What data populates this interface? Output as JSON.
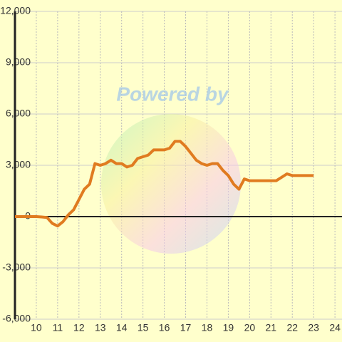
{
  "chart_data": {
    "type": "line",
    "watermark": "Powered by",
    "x": [
      9,
      9.5,
      10,
      10.25,
      10.5,
      10.75,
      11,
      11.25,
      11.5,
      11.75,
      12,
      12.25,
      12.5,
      12.75,
      13,
      13.25,
      13.5,
      13.75,
      14,
      14.25,
      14.5,
      14.75,
      15,
      15.25,
      15.5,
      15.75,
      16,
      16.25,
      16.5,
      16.75,
      17,
      17.25,
      17.5,
      17.75,
      18,
      18.25,
      18.5,
      18.75,
      19,
      19.25,
      19.5,
      19.75,
      20,
      20.25,
      20.5,
      20.75,
      21,
      21.25,
      21.5,
      21.75,
      22,
      22.25,
      22.5,
      22.75,
      23
    ],
    "series": [
      {
        "color": "#e07b20",
        "values": [
          0,
          0,
          0,
          -20,
          -50,
          -400,
          -550,
          -300,
          100,
          400,
          1000,
          1600,
          1900,
          3100,
          3000,
          3100,
          3300,
          3100,
          3100,
          2900,
          3000,
          3400,
          3500,
          3600,
          3900,
          3900,
          3900,
          4000,
          4400,
          4400,
          4100,
          3700,
          3300,
          3100,
          3000,
          3100,
          3100,
          2700,
          2400,
          1900,
          1600,
          2200,
          2100,
          2100,
          2100,
          2100,
          2100,
          2100,
          2300,
          2500,
          2400,
          2400,
          2400,
          2400,
          2400
        ]
      }
    ],
    "xlim": [
      9,
      24.33
    ],
    "xticks": [
      10,
      11,
      12,
      13,
      14,
      15,
      16,
      17,
      18,
      19,
      20,
      21,
      22,
      23,
      24
    ],
    "ylim": [
      -6000,
      12000
    ],
    "yticks": [
      {
        "value": -6000,
        "label": "-6,000"
      },
      {
        "value": -3000,
        "label": "-3,000"
      },
      0,
      {
        "value": 3000,
        "label": "3,000"
      },
      {
        "value": 6000,
        "label": "6,000"
      },
      {
        "value": 9000,
        "label": "9,000"
      },
      {
        "value": 12000,
        "label": "12,000"
      }
    ],
    "grid": true
  }
}
